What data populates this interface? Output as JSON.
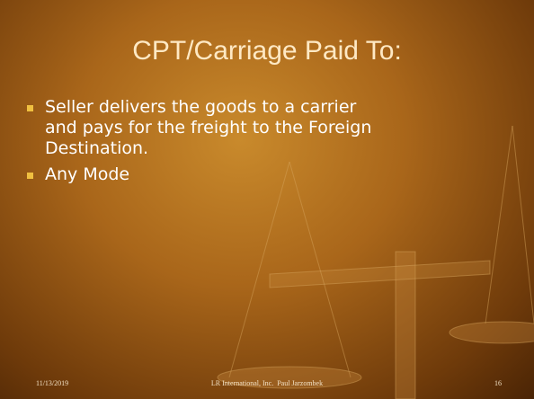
{
  "title": "CPT/Carriage Paid To:",
  "bullets": [
    "Seller delivers the goods to a carrier and pays for the freight to the Foreign Destination.",
    "Any Mode"
  ],
  "footer": {
    "date": "11/13/2019",
    "center": "LR International, Inc.  Paul Jarzombek",
    "page": "16"
  }
}
